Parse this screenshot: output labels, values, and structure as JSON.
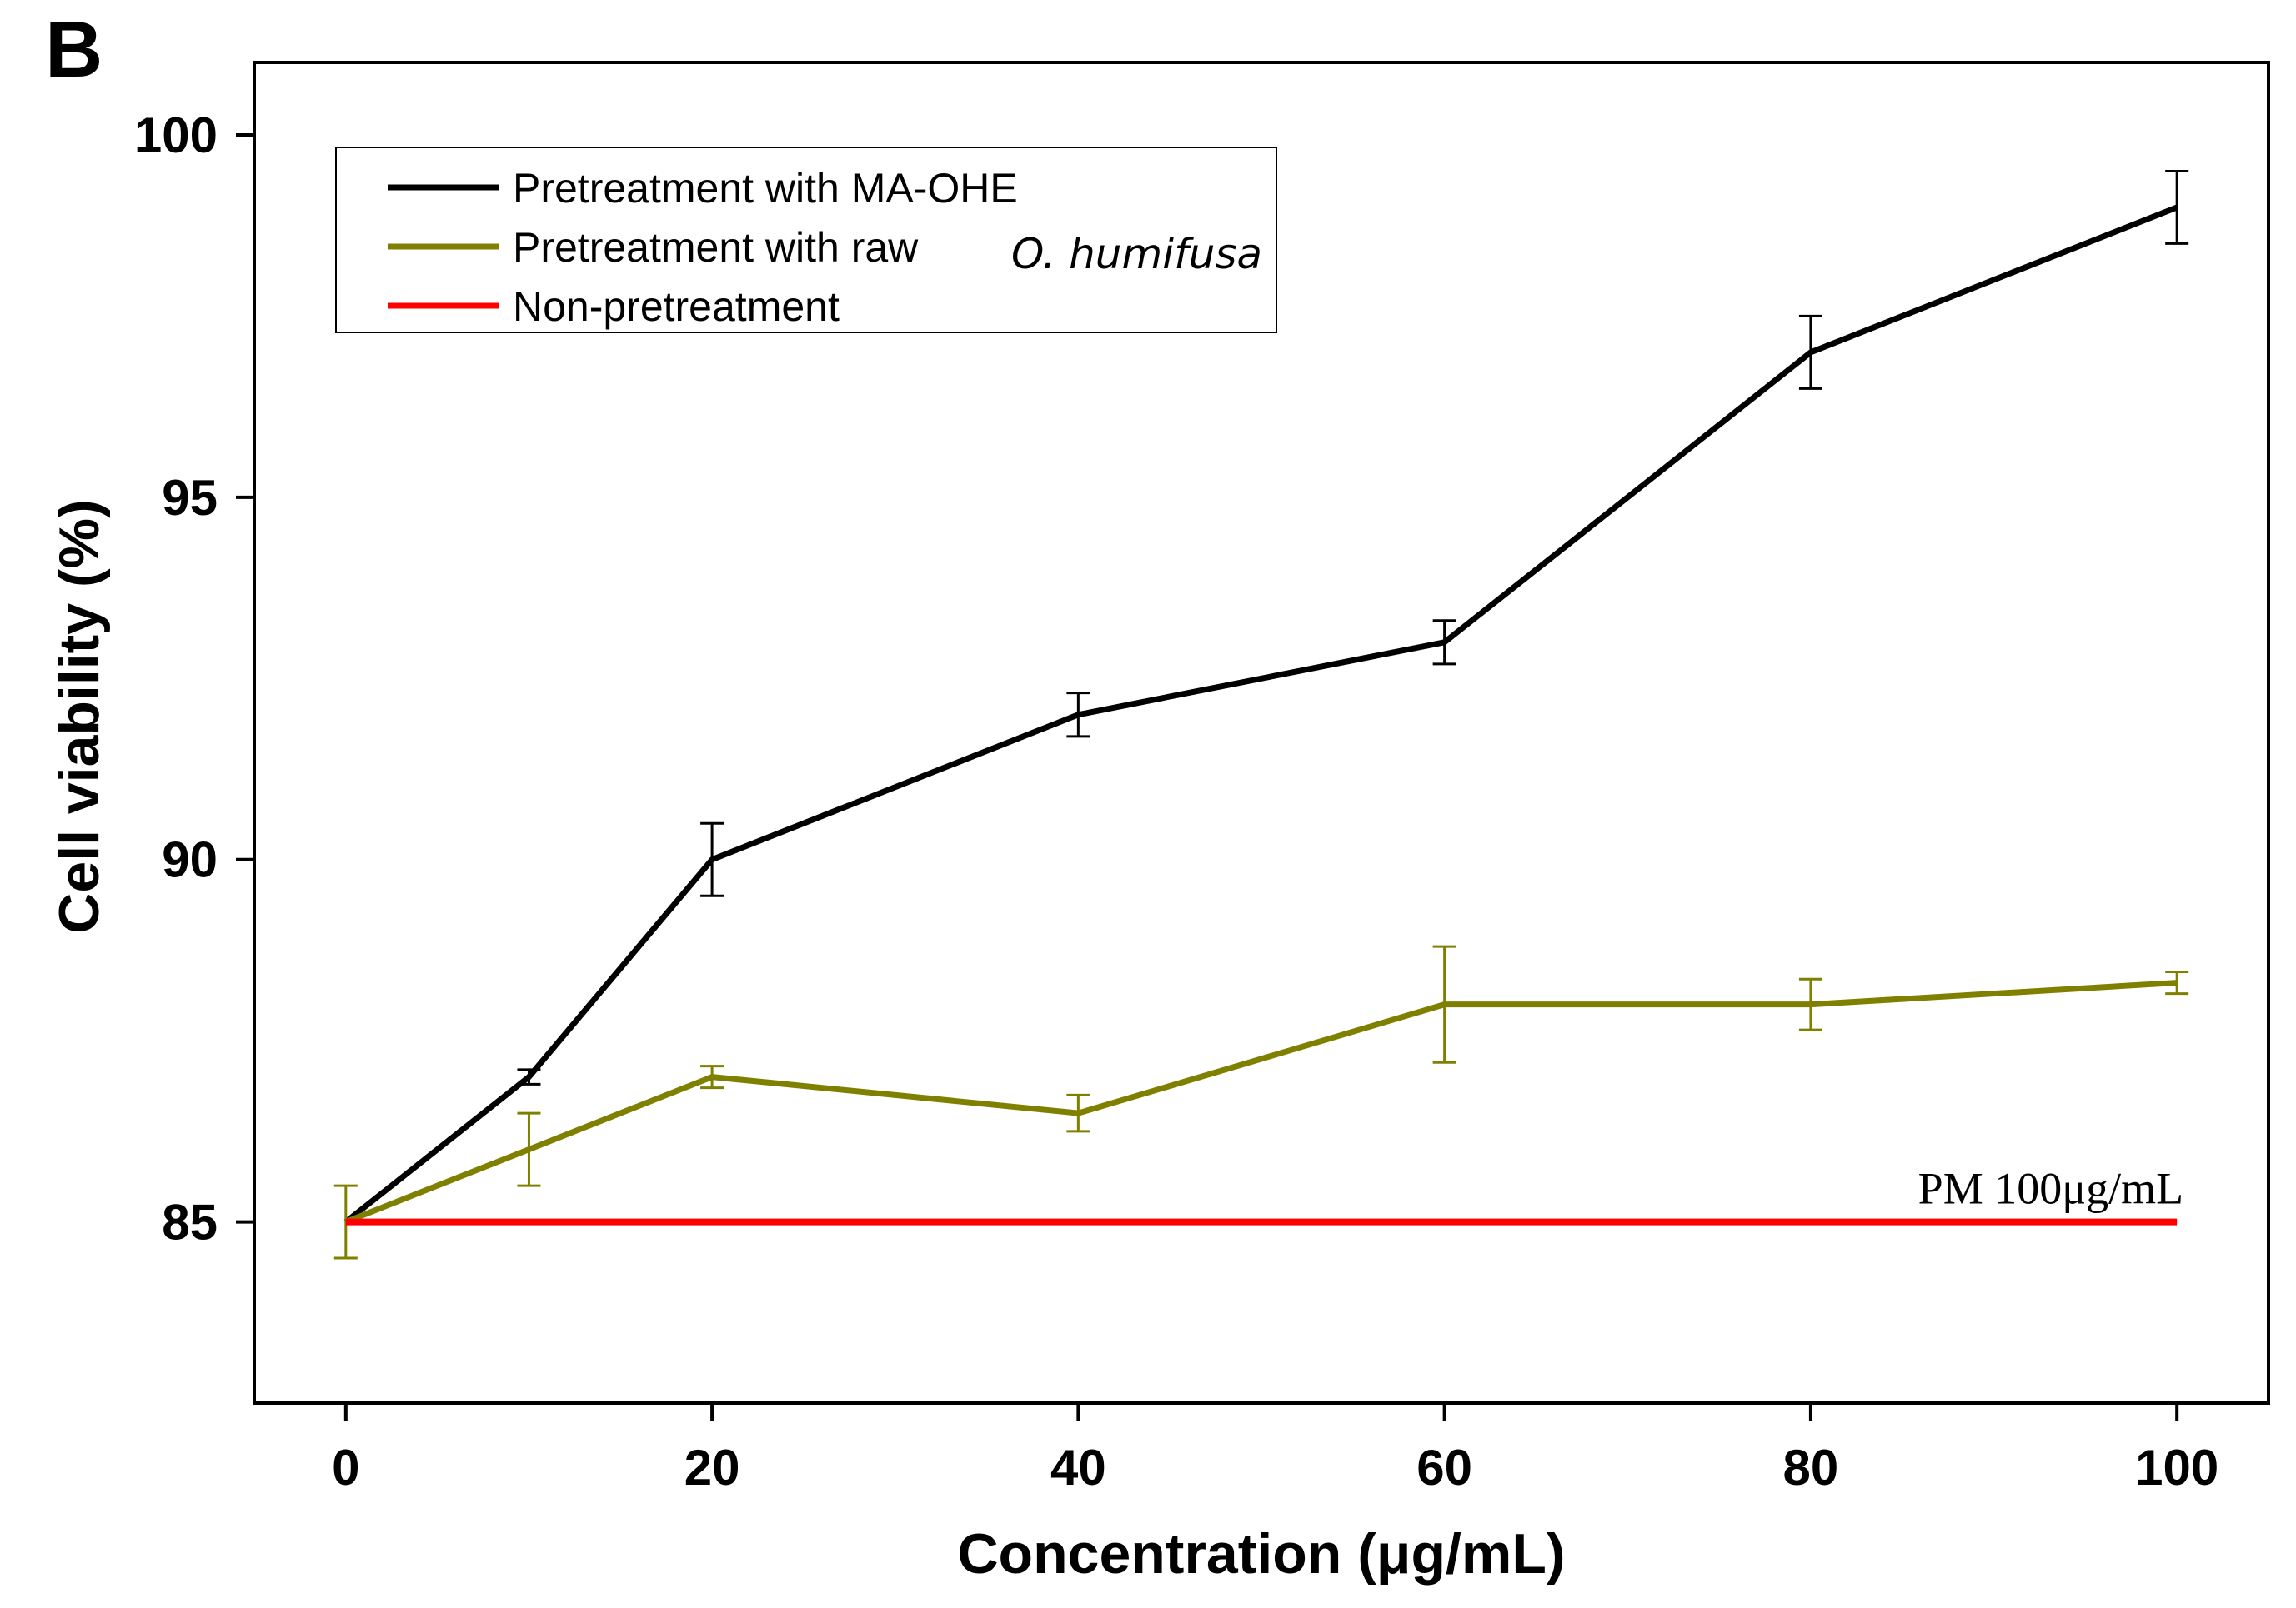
{
  "panel_label": "B",
  "chart_data": {
    "type": "line",
    "xlabel": "Concentration (μg/mL)",
    "ylabel": "Cell viability (%)",
    "xlim": [
      -5,
      105
    ],
    "ylim": [
      82.5,
      101
    ],
    "xticks": [
      0,
      20,
      40,
      60,
      80,
      100
    ],
    "yticks": [
      85,
      90,
      95,
      100
    ],
    "grid": false,
    "legend_position": "top-left",
    "series": [
      {
        "name": "Pretreatment with MA-OHE",
        "color": "#000000",
        "x": [
          0,
          10,
          20,
          40,
          60,
          80,
          100
        ],
        "y": [
          85,
          87,
          90,
          92,
          93,
          97,
          99
        ],
        "err": [
          0,
          0.1,
          0.5,
          0.3,
          0.3,
          0.5,
          0.5
        ]
      },
      {
        "name": "Pretreatment with raw",
        "name_italic": "O. humifusa",
        "color": "#808000",
        "x": [
          0,
          10,
          20,
          40,
          60,
          80,
          100
        ],
        "y": [
          85,
          86,
          87,
          86.5,
          88,
          88,
          88.3
        ],
        "err": [
          0.5,
          0.5,
          0.15,
          0.25,
          0.8,
          0.35,
          0.15
        ]
      },
      {
        "name": "Non-pretreatment",
        "color": "#ff0000",
        "x": [
          0,
          100
        ],
        "y": [
          85,
          85
        ],
        "err": [
          0,
          0
        ]
      }
    ],
    "annotations": [
      {
        "text": "PM 100μg/mL",
        "x": 100,
        "y": 85
      }
    ]
  }
}
